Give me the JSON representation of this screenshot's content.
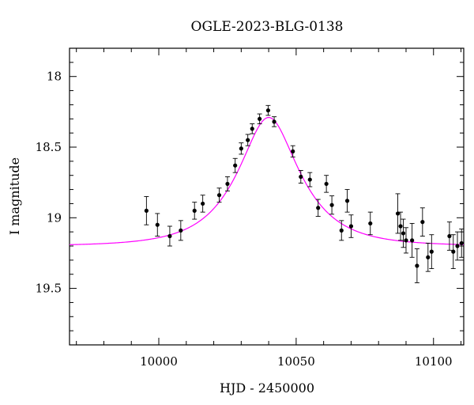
{
  "chart_data": {
    "type": "scatter",
    "title": "OGLE-2023-BLG-0138",
    "xlabel": "HJD - 2450000",
    "ylabel": "I magnitude",
    "xlim": [
      9967.5,
      10111
    ],
    "ylim": [
      19.9,
      17.8
    ],
    "y_inverted": true,
    "x_ticks": [
      10000,
      10050,
      10100
    ],
    "x_tick_labels": [
      "10000",
      "10050",
      "10100"
    ],
    "y_ticks": [
      18,
      18.5,
      19,
      19.5
    ],
    "y_tick_labels": [
      "18",
      "18.5",
      "19",
      "19.5"
    ],
    "grid": false,
    "series": [
      {
        "kind": "points",
        "color": "#000000",
        "points": [
          {
            "x": 9995.5,
            "y": 18.95,
            "err": 0.1
          },
          {
            "x": 9999.5,
            "y": 19.05,
            "err": 0.08
          },
          {
            "x": 10004,
            "y": 19.13,
            "err": 0.07
          },
          {
            "x": 10008,
            "y": 19.09,
            "err": 0.07
          },
          {
            "x": 10013,
            "y": 18.95,
            "err": 0.06
          },
          {
            "x": 10016,
            "y": 18.9,
            "err": 0.06
          },
          {
            "x": 10022,
            "y": 18.84,
            "err": 0.05
          },
          {
            "x": 10025,
            "y": 18.76,
            "err": 0.05
          },
          {
            "x": 10027.8,
            "y": 18.63,
            "err": 0.05
          },
          {
            "x": 10030,
            "y": 18.51,
            "err": 0.04
          },
          {
            "x": 10032.4,
            "y": 18.45,
            "err": 0.04
          },
          {
            "x": 10034,
            "y": 18.37,
            "err": 0.035
          },
          {
            "x": 10036.7,
            "y": 18.3,
            "err": 0.035
          },
          {
            "x": 10039.8,
            "y": 18.24,
            "err": 0.035
          },
          {
            "x": 10042,
            "y": 18.32,
            "err": 0.035
          },
          {
            "x": 10048.8,
            "y": 18.53,
            "err": 0.04
          },
          {
            "x": 10051.7,
            "y": 18.71,
            "err": 0.045
          },
          {
            "x": 10055,
            "y": 18.73,
            "err": 0.05
          },
          {
            "x": 10058,
            "y": 18.93,
            "err": 0.06
          },
          {
            "x": 10061,
            "y": 18.76,
            "err": 0.06
          },
          {
            "x": 10063,
            "y": 18.91,
            "err": 0.065
          },
          {
            "x": 10066.5,
            "y": 19.09,
            "err": 0.07
          },
          {
            "x": 10068.6,
            "y": 18.88,
            "err": 0.08
          },
          {
            "x": 10070,
            "y": 19.06,
            "err": 0.08
          },
          {
            "x": 10077,
            "y": 19.04,
            "err": 0.08
          },
          {
            "x": 10087,
            "y": 18.97,
            "err": 0.14
          },
          {
            "x": 10088,
            "y": 19.06,
            "err": 0.1
          },
          {
            "x": 10089,
            "y": 19.11,
            "err": 0.1
          },
          {
            "x": 10090,
            "y": 19.16,
            "err": 0.09
          },
          {
            "x": 10092.2,
            "y": 19.16,
            "err": 0.12
          },
          {
            "x": 10094,
            "y": 19.34,
            "err": 0.12
          },
          {
            "x": 10096,
            "y": 19.03,
            "err": 0.1
          },
          {
            "x": 10098,
            "y": 19.28,
            "err": 0.1
          },
          {
            "x": 10099.3,
            "y": 19.24,
            "err": 0.12
          },
          {
            "x": 10105.8,
            "y": 19.13,
            "err": 0.1
          },
          {
            "x": 10107.2,
            "y": 19.24,
            "err": 0.12
          },
          {
            "x": 10108.7,
            "y": 19.2,
            "err": 0.1
          },
          {
            "x": 10110.2,
            "y": 19.18,
            "err": 0.1
          }
        ]
      },
      {
        "kind": "model-curve",
        "color": "#ff00ff",
        "peak_x": 10040,
        "peak_y": 18.29,
        "baseline_y": 19.2
      }
    ]
  },
  "colors": {
    "axis": "#000000",
    "points": "#000000",
    "model": "#ff00ff"
  }
}
